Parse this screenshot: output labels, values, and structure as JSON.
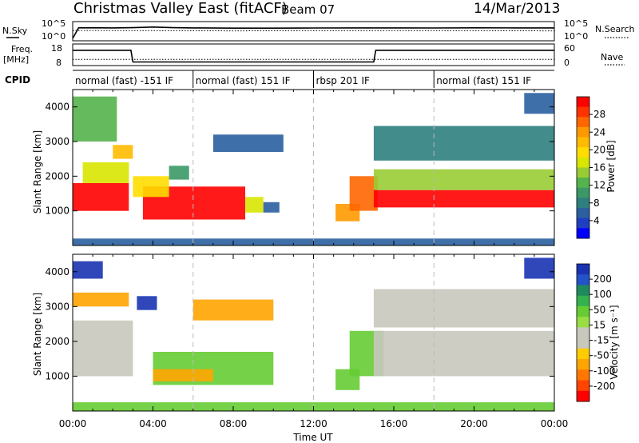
{
  "header": {
    "station": "Christmas Valley East (fitACF)",
    "beam": "Beam 07",
    "date": "14/Mar/2013"
  },
  "noise_panel": {
    "left_label": "N.Sky",
    "left_ticks": [
      "10^5",
      "10^0"
    ],
    "right_ticks": [
      "10^5",
      "10^0"
    ],
    "right_label": "N.Search"
  },
  "freq_panel": {
    "left_label_line1": "Freq.",
    "left_label_line2": "[MHz]",
    "left_ticks": [
      "18",
      "8"
    ],
    "right_ticks": [
      "60",
      "0"
    ],
    "right_label": "Nave"
  },
  "cpid": {
    "label": "CPID",
    "segments": [
      {
        "label": "normal (fast) -151 IF",
        "start": 0,
        "end": 6
      },
      {
        "label": "normal (fast) 151 IF",
        "start": 6,
        "end": 12
      },
      {
        "label": "rbsp 201 IF",
        "start": 12,
        "end": 18
      },
      {
        "label": "normal (fast) 151 IF",
        "start": 18,
        "end": 24
      }
    ]
  },
  "colorbars": {
    "power": {
      "title": "Power [dB]",
      "ticks": [
        "28",
        "24",
        "20",
        "16",
        "12",
        "8",
        "4"
      ],
      "colors": [
        "#ff0000",
        "#ff3300",
        "#ff6600",
        "#ff9900",
        "#ffbb00",
        "#ffdd00",
        "#d8e600",
        "#99cc33",
        "#55b34d",
        "#3a9966",
        "#2f7f7f",
        "#2a5fa0",
        "#1e3fc0",
        "#0000ff"
      ]
    },
    "velocity": {
      "title": "Velocity [m s⁻¹]",
      "ticks": [
        "200",
        "100",
        "50",
        "15",
        "-15",
        "-50",
        "-100",
        "-200"
      ],
      "colors": [
        "#1a33b3",
        "#2352c9",
        "#1f8a5e",
        "#33b34d",
        "#66cc33",
        "#99dd44",
        "#c8c8bc",
        "#c8c8bc",
        "#ffcc00",
        "#ffa500",
        "#ff7700",
        "#ff4400",
        "#ff0000"
      ]
    }
  },
  "axes": {
    "xlabel": "Time UT",
    "xticks": [
      "00:00",
      "04:00",
      "08:00",
      "12:00",
      "16:00",
      "20:00",
      "00:00"
    ],
    "ylabel": "Slant Range [km]",
    "yticks": [
      "1000",
      "2000",
      "3000",
      "4000"
    ]
  },
  "chart_data": [
    {
      "type": "line",
      "title": "Christmas Valley East (fitACF) Beam 07",
      "xlabel": "Time UT",
      "ylabel": "N.Sky",
      "scale": "log",
      "ylim": [
        1,
        100000
      ],
      "x_unit": "hours UT",
      "series": [
        {
          "name": "N.Sky",
          "x": [
            0,
            0.3,
            2,
            3,
            4,
            5,
            6,
            8,
            10,
            12,
            14,
            16,
            18,
            20,
            22,
            24
          ],
          "values": [
            1,
            8000,
            7000,
            9000,
            15000,
            9000,
            7000,
            6000,
            6000,
            6500,
            7000,
            7000,
            6500,
            7500,
            7000,
            7000
          ]
        },
        {
          "name": "N.Search",
          "x": [
            0,
            4,
            8,
            12,
            16,
            20,
            24
          ],
          "values": [
            800,
            700,
            600,
            650,
            700,
            650,
            600
          ]
        }
      ]
    },
    {
      "type": "line",
      "xlabel": "Time UT",
      "ylabel": "Freq. [MHz]",
      "ylim": [
        8,
        18
      ],
      "x_unit": "hours UT",
      "series": [
        {
          "name": "Freq.",
          "x": [
            0,
            2.9,
            3.0,
            15.0,
            15.1,
            24
          ],
          "values": [
            16.5,
            16.5,
            8.8,
            8.8,
            16.5,
            16.5
          ]
        },
        {
          "name": "Nave",
          "x": [
            0,
            24
          ],
          "values": [
            15,
            15
          ]
        }
      ]
    },
    {
      "type": "heatmap",
      "title": "Power [dB]",
      "xlabel": "Time UT",
      "ylabel": "Slant Range [km]",
      "xlim": [
        0,
        24
      ],
      "ylim": [
        0,
        4500
      ],
      "zlim": [
        0,
        30
      ],
      "x_unit": "hours UT",
      "regions": [
        {
          "x": [
            0.0,
            2.8
          ],
          "y": [
            1000,
            1800
          ],
          "value": 28
        },
        {
          "x": [
            0.5,
            2.8
          ],
          "y": [
            1800,
            2400
          ],
          "value": 16
        },
        {
          "x": [
            0.0,
            2.2
          ],
          "y": [
            3000,
            4300
          ],
          "value": 12
        },
        {
          "x": [
            2.0,
            3.0
          ],
          "y": [
            2500,
            2900
          ],
          "value": 20
        },
        {
          "x": [
            3.5,
            8.6
          ],
          "y": [
            750,
            1700
          ],
          "value": 28
        },
        {
          "x": [
            8.6,
            9.5
          ],
          "y": [
            950,
            1400
          ],
          "value": 16
        },
        {
          "x": [
            9.5,
            10.3
          ],
          "y": [
            950,
            1250
          ],
          "value": 6
        },
        {
          "x": [
            3.0,
            4.8
          ],
          "y": [
            1400,
            2000
          ],
          "value": 18
        },
        {
          "x": [
            4.8,
            5.8
          ],
          "y": [
            1900,
            2300
          ],
          "value": 10
        },
        {
          "x": [
            7.0,
            10.5
          ],
          "y": [
            2700,
            3200
          ],
          "value": 6
        },
        {
          "x": [
            13.1,
            14.3
          ],
          "y": [
            700,
            1200
          ],
          "value": 22
        },
        {
          "x": [
            13.8,
            15.2
          ],
          "y": [
            1000,
            2000
          ],
          "value": 24
        },
        {
          "x": [
            15.0,
            24.0
          ],
          "y": [
            1100,
            1600
          ],
          "value": 28
        },
        {
          "x": [
            15.0,
            24.0
          ],
          "y": [
            1600,
            2200
          ],
          "value": 14
        },
        {
          "x": [
            15.0,
            24.0
          ],
          "y": [
            2450,
            3450
          ],
          "value": 8
        },
        {
          "x": [
            22.5,
            24.0
          ],
          "y": [
            3800,
            4400
          ],
          "value": 5
        },
        {
          "x": [
            0.0,
            24.0
          ],
          "y": [
            0,
            200
          ],
          "value": 6
        }
      ]
    },
    {
      "type": "heatmap",
      "title": "Velocity [m s⁻¹]",
      "xlabel": "Time UT",
      "ylabel": "Slant Range [km]",
      "xlim": [
        0,
        24
      ],
      "ylim": [
        0,
        4500
      ],
      "zlim": [
        -200,
        200
      ],
      "x_unit": "hours UT",
      "regions": [
        {
          "x": [
            0.0,
            3.0
          ],
          "y": [
            1000,
            2600
          ],
          "value": 0
        },
        {
          "x": [
            0.0,
            2.8
          ],
          "y": [
            3000,
            3400
          ],
          "value": -20
        },
        {
          "x": [
            0.0,
            1.5
          ],
          "y": [
            3800,
            4300
          ],
          "value": 150
        },
        {
          "x": [
            3.2,
            4.2
          ],
          "y": [
            2900,
            3300
          ],
          "value": 200
        },
        {
          "x": [
            4.0,
            10.0
          ],
          "y": [
            750,
            1700
          ],
          "value": 40
        },
        {
          "x": [
            4.0,
            7.0
          ],
          "y": [
            850,
            1200
          ],
          "value": -30
        },
        {
          "x": [
            6.0,
            10.0
          ],
          "y": [
            2600,
            3200
          ],
          "value": -15
        },
        {
          "x": [
            13.1,
            14.3
          ],
          "y": [
            600,
            1200
          ],
          "value": 40
        },
        {
          "x": [
            13.8,
            15.5
          ],
          "y": [
            1000,
            2300
          ],
          "value": 60
        },
        {
          "x": [
            15.0,
            24.0
          ],
          "y": [
            1000,
            2300
          ],
          "value": 0
        },
        {
          "x": [
            15.0,
            24.0
          ],
          "y": [
            2400,
            3500
          ],
          "value": 5
        },
        {
          "x": [
            22.5,
            24.0
          ],
          "y": [
            3800,
            4400
          ],
          "value": 150
        },
        {
          "x": [
            0.0,
            24.0
          ],
          "y": [
            0,
            250
          ],
          "value": 60
        }
      ]
    }
  ]
}
